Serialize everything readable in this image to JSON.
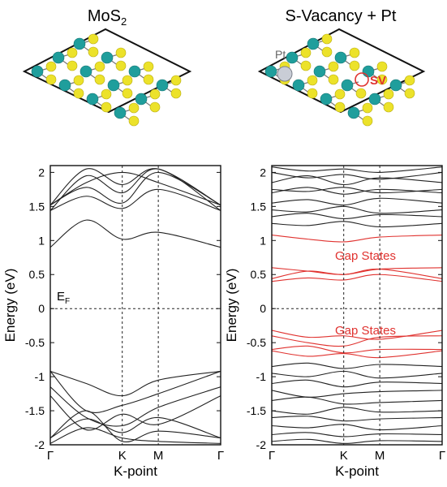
{
  "panel_titles": {
    "left_prefix": "MoS",
    "left_sub": "2",
    "right": "S-Vacancy + Pt"
  },
  "structure_labels": {
    "pt": "Pt",
    "sv": "SV"
  },
  "colors": {
    "mo_atom": "#1f9e9c",
    "s_atom": "#ece22a",
    "pt_atom": "#c9cdd6",
    "sv_marker": "#e0322f",
    "pristine_bands": "#222222",
    "defect_bands": "#e0322f"
  },
  "chart_data": [
    {
      "type": "line",
      "title": "MoS2",
      "xlabel": "K-point",
      "ylabel": "Energy (eV)",
      "xtick_labels": [
        "Γ",
        "K",
        "M",
        "Γ"
      ],
      "k_path": [
        0,
        0.577,
        0.866,
        1.366
      ],
      "ylim": [
        -2,
        2.1
      ],
      "yticks": [
        2,
        1.5,
        1,
        0.5,
        0,
        -0.5,
        -1,
        -1.5,
        -2
      ],
      "ytick_labels": [
        "2",
        "1.5",
        "1",
        "0.5",
        "0",
        "-0.5",
        "-1",
        "-1.5",
        "-2"
      ],
      "fermi_level": 0,
      "fermi_label_main": "E",
      "fermi_label_sub": "F",
      "series": [
        {
          "values": [
            0.9,
            1.3,
            1.02,
            1.12,
            0.9
          ]
        },
        {
          "values": [
            1.44,
            1.65,
            1.47,
            1.75,
            1.44
          ]
        },
        {
          "values": [
            1.44,
            1.95,
            1.7,
            2.05,
            1.44
          ]
        },
        {
          "values": [
            1.52,
            1.78,
            1.55,
            2.0,
            1.52
          ]
        },
        {
          "values": [
            1.52,
            1.85,
            2.0,
            1.85,
            1.52
          ]
        },
        {
          "values": [
            1.52,
            2.05,
            1.82,
            2.05,
            1.52
          ]
        },
        {
          "values": [
            -0.92,
            -1.1,
            -1.28,
            -1.05,
            -0.92
          ]
        },
        {
          "values": [
            -0.92,
            -1.5,
            -1.42,
            -1.25,
            -0.92
          ]
        },
        {
          "values": [
            -1.15,
            -1.6,
            -1.72,
            -1.45,
            -1.15
          ]
        },
        {
          "values": [
            -1.28,
            -1.78,
            -1.55,
            -1.7,
            -1.28
          ]
        },
        {
          "values": [
            -1.9,
            -1.62,
            -1.82,
            -1.6,
            -1.9
          ]
        },
        {
          "values": [
            -1.9,
            -1.5,
            -1.95,
            -1.8,
            -1.9
          ]
        },
        {
          "values": [
            -1.98,
            -1.75,
            -1.9,
            -1.95,
            -1.98
          ]
        }
      ]
    },
    {
      "type": "line",
      "title": "S-Vacancy + Pt",
      "xlabel": "K-point",
      "ylabel": "Energy (eV)",
      "xtick_labels": [
        "Γ",
        "K",
        "M",
        "Γ"
      ],
      "k_path": [
        0,
        0.577,
        0.866,
        1.366
      ],
      "ylim": [
        -2,
        2.1
      ],
      "yticks": [
        2,
        1.5,
        1,
        0.5,
        0,
        -0.5,
        -1,
        -1.5,
        -2
      ],
      "ytick_labels": [
        "2",
        "1.5",
        "1",
        "0.5",
        "0",
        "-0.5",
        "-1",
        "-1.5",
        "-2"
      ],
      "fermi_level": 0,
      "annotations": [
        {
          "text": "Gap States",
          "x": 0.55,
          "y": 0.72
        },
        {
          "text": "Gap States",
          "x": 0.55,
          "y": -0.38
        }
      ],
      "series": [
        {
          "values": [
            2.08,
            2.02,
            2.05,
            2.0,
            2.08
          ]
        },
        {
          "values": [
            2.0,
            1.92,
            1.97,
            1.9,
            2.0
          ]
        },
        {
          "values": [
            1.85,
            1.95,
            1.82,
            1.92,
            1.85
          ]
        },
        {
          "values": [
            1.75,
            1.72,
            1.78,
            1.7,
            1.75
          ]
        },
        {
          "values": [
            1.7,
            1.78,
            1.68,
            1.75,
            1.7
          ]
        },
        {
          "values": [
            1.55,
            1.6,
            1.52,
            1.62,
            1.55
          ]
        },
        {
          "values": [
            1.45,
            1.42,
            1.5,
            1.4,
            1.45
          ]
        },
        {
          "values": [
            1.35,
            1.4,
            1.32,
            1.38,
            1.35
          ]
        },
        {
          "values": [
            1.25,
            1.22,
            1.28,
            1.2,
            1.25
          ]
        },
        {
          "group": "gap",
          "values": [
            1.08,
            1.02,
            0.98,
            1.05,
            1.08
          ]
        },
        {
          "group": "gap",
          "values": [
            0.6,
            0.55,
            0.5,
            0.58,
            0.6
          ]
        },
        {
          "group": "gap",
          "values": [
            0.44,
            0.55,
            0.5,
            0.58,
            0.44
          ]
        },
        {
          "group": "gap",
          "values": [
            0.4,
            0.45,
            0.42,
            0.5,
            0.4
          ]
        },
        {
          "group": "gap",
          "values": [
            -0.32,
            -0.42,
            -0.4,
            -0.45,
            -0.32
          ]
        },
        {
          "group": "gap",
          "values": [
            -0.4,
            -0.5,
            -0.55,
            -0.42,
            -0.4
          ]
        },
        {
          "group": "gap",
          "values": [
            -0.6,
            -0.55,
            -0.65,
            -0.6,
            -0.6
          ]
        },
        {
          "group": "gap",
          "values": [
            -0.62,
            -0.7,
            -0.66,
            -0.72,
            -0.62
          ]
        },
        {
          "values": [
            -0.85,
            -0.8,
            -0.88,
            -0.82,
            -0.85
          ]
        },
        {
          "values": [
            -0.95,
            -1.0,
            -0.92,
            -1.02,
            -0.95
          ]
        },
        {
          "values": [
            -1.1,
            -1.05,
            -1.15,
            -1.08,
            -1.1
          ]
        },
        {
          "values": [
            -1.2,
            -1.3,
            -1.25,
            -1.22,
            -1.2
          ]
        },
        {
          "values": [
            -1.35,
            -1.3,
            -1.4,
            -1.38,
            -1.35
          ]
        },
        {
          "values": [
            -1.5,
            -1.55,
            -1.45,
            -1.52,
            -1.5
          ]
        },
        {
          "values": [
            -1.6,
            -1.58,
            -1.65,
            -1.62,
            -1.6
          ]
        },
        {
          "values": [
            -1.72,
            -1.75,
            -1.7,
            -1.78,
            -1.72
          ]
        },
        {
          "values": [
            -1.85,
            -1.82,
            -1.88,
            -1.84,
            -1.85
          ]
        },
        {
          "values": [
            -1.95,
            -1.92,
            -1.98,
            -1.94,
            -1.95
          ]
        }
      ]
    }
  ]
}
